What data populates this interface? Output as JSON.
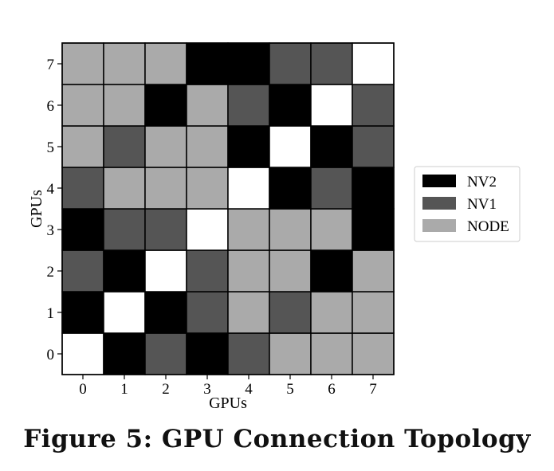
{
  "caption": "Figure 5: GPU Connection Topology",
  "colors": {
    "self": "#ffffff",
    "NV2": "#000000",
    "NV1": "#555555",
    "NODE": "#aaaaaa"
  },
  "chart_data": {
    "type": "heatmap",
    "xlabel": "GPUs",
    "ylabel": "GPUs",
    "x_ticks": [
      "0",
      "1",
      "2",
      "3",
      "4",
      "5",
      "6",
      "7"
    ],
    "y_ticks": [
      "0",
      "1",
      "2",
      "3",
      "4",
      "5",
      "6",
      "7"
    ],
    "legend": [
      "NV2",
      "NV1",
      "NODE"
    ],
    "legend_position": "right",
    "matrix": [
      [
        "X",
        "NV2",
        "NV1",
        "NV2",
        "NV1",
        "NODE",
        "NODE",
        "NODE"
      ],
      [
        "NV2",
        "X",
        "NV2",
        "NV1",
        "NODE",
        "NV1",
        "NODE",
        "NODE"
      ],
      [
        "NV1",
        "NV2",
        "X",
        "NV1",
        "NODE",
        "NODE",
        "NV2",
        "NODE"
      ],
      [
        "NV2",
        "NV1",
        "NV1",
        "X",
        "NODE",
        "NODE",
        "NODE",
        "NV2"
      ],
      [
        "NV1",
        "NODE",
        "NODE",
        "NODE",
        "X",
        "NV2",
        "NV1",
        "NV2"
      ],
      [
        "NODE",
        "NV1",
        "NODE",
        "NODE",
        "NV2",
        "X",
        "NV2",
        "NV1"
      ],
      [
        "NODE",
        "NODE",
        "NV2",
        "NODE",
        "NV1",
        "NV2",
        "X",
        "NV1"
      ],
      [
        "NODE",
        "NODE",
        "NODE",
        "NV2",
        "NV2",
        "NV1",
        "NV1",
        "X"
      ]
    ]
  }
}
